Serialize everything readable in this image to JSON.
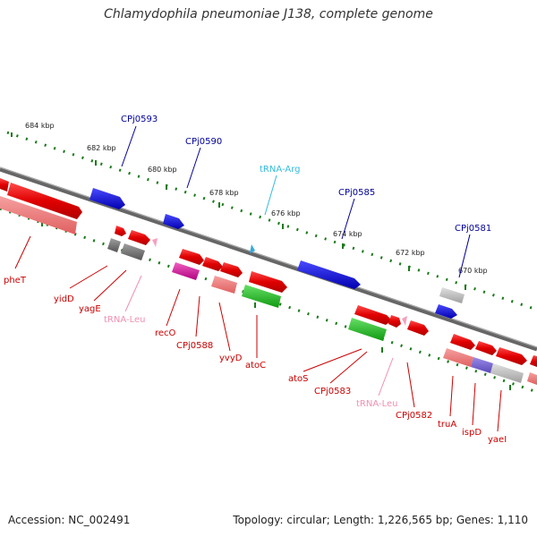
{
  "title": "Chlamydophila pneumoniae J138, complete genome",
  "footer": {
    "accession": "Accession: NC_002491",
    "summary": "Topology: circular; Length: 1,226,565 bp; Genes: 1,110"
  },
  "colors": {
    "cds_red": "#e8101a",
    "rrna_pink": "#f08080",
    "trna": "#f4a0c0",
    "gene_blue": "#1010d8",
    "green": "#22bb22",
    "magenta": "#e020a0",
    "gray": "#888888",
    "label_red": "#cc0000",
    "label_blue": "#000099",
    "label_cyan": "#33bbdd",
    "label_pink": "#f090b0"
  },
  "scale_labels": [
    "684 kbp",
    "682 kbp",
    "680 kbp",
    "678 kbp",
    "676 kbp",
    "674 kbp",
    "672 kbp",
    "670 kbp"
  ],
  "top_labels": [
    {
      "text": "CPj0593",
      "kind": "blue"
    },
    {
      "text": "CPj0590",
      "kind": "blue"
    },
    {
      "text": "tRNA-Arg",
      "kind": "cyan"
    },
    {
      "text": "CPj0585",
      "kind": "blue"
    },
    {
      "text": "CPj0581",
      "kind": "blue"
    }
  ],
  "bottom_labels": [
    {
      "text": "pheT",
      "kind": "red"
    },
    {
      "text": "yidD",
      "kind": "red"
    },
    {
      "text": "yagE",
      "kind": "red"
    },
    {
      "text": "tRNA-Leu",
      "kind": "pink"
    },
    {
      "text": "recO",
      "kind": "red"
    },
    {
      "text": "CPj0588",
      "kind": "red"
    },
    {
      "text": "yvyD",
      "kind": "red"
    },
    {
      "text": "atoC",
      "kind": "red"
    },
    {
      "text": "atoS",
      "kind": "red"
    },
    {
      "text": "CPj0583",
      "kind": "red"
    },
    {
      "text": "tRNA-Leu",
      "kind": "pink"
    },
    {
      "text": "CPj0582",
      "kind": "red"
    },
    {
      "text": "truA",
      "kind": "red"
    },
    {
      "text": "ispD",
      "kind": "red"
    },
    {
      "text": "yaeI",
      "kind": "red"
    }
  ]
}
